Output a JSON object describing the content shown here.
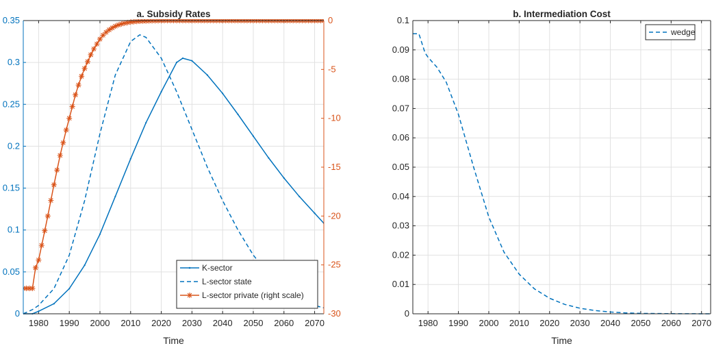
{
  "colors": {
    "blue": "#0072BD",
    "orange": "#D95319",
    "grid": "#e1e1e1",
    "axis": "#262626"
  },
  "chart_data": [
    {
      "type": "line",
      "title": "a. Subsidy Rates",
      "xlabel": "Time",
      "ylabel": "",
      "y2label": "",
      "xlim": [
        1975,
        2073
      ],
      "ylim": [
        0,
        0.35
      ],
      "y2lim": [
        -30,
        0
      ],
      "grid": true,
      "legend_position": "bottom-right",
      "xticks": [
        1980,
        1990,
        2000,
        2010,
        2020,
        2030,
        2040,
        2050,
        2060,
        2070
      ],
      "xtick_labels": [
        "1980",
        "1990",
        "2000",
        "2010",
        "2020",
        "2030",
        "2040",
        "2050",
        "2060",
        "2070"
      ],
      "yticks": [
        0,
        0.05,
        0.1,
        0.15,
        0.2,
        0.25,
        0.3,
        0.35
      ],
      "ytick_labels": [
        "0",
        "0.05",
        "0.1",
        "0.15",
        "0.2",
        "0.25",
        "0.3",
        "0.35"
      ],
      "y2ticks": [
        0,
        -5,
        -10,
        -15,
        -20,
        -25,
        -30
      ],
      "y2tick_labels": [
        "0",
        "-5",
        "-10",
        "-15",
        "-20",
        "-25",
        "-30"
      ],
      "series": [
        {
          "name": "K-sector",
          "axis": "left",
          "style": "solid",
          "marker": "dot",
          "color": "#0072BD",
          "x": [
            1975,
            1978,
            1980,
            1985,
            1990,
            1995,
            2000,
            2005,
            2010,
            2015,
            2020,
            2025,
            2027,
            2030,
            2035,
            2040,
            2045,
            2050,
            2055,
            2060,
            2065,
            2070,
            2073
          ],
          "y": [
            0,
            0,
            0.003,
            0.012,
            0.03,
            0.058,
            0.095,
            0.14,
            0.185,
            0.228,
            0.265,
            0.3,
            0.305,
            0.302,
            0.285,
            0.263,
            0.238,
            0.212,
            0.186,
            0.162,
            0.14,
            0.12,
            0.108
          ]
        },
        {
          "name": "L-sector state",
          "axis": "left",
          "style": "dashed",
          "marker": "none",
          "color": "#0072BD",
          "x": [
            1975,
            1978,
            1980,
            1985,
            1990,
            1995,
            2000,
            2005,
            2010,
            2013,
            2015,
            2020,
            2025,
            2030,
            2035,
            2040,
            2045,
            2050,
            2055,
            2060,
            2065,
            2070,
            2073
          ],
          "y": [
            0,
            0.005,
            0.01,
            0.03,
            0.07,
            0.135,
            0.215,
            0.285,
            0.325,
            0.333,
            0.33,
            0.305,
            0.265,
            0.22,
            0.175,
            0.135,
            0.1,
            0.07,
            0.047,
            0.03,
            0.018,
            0.01,
            0.007
          ]
        },
        {
          "name": "L-sector private (right scale)",
          "axis": "right",
          "style": "solid",
          "marker": "star",
          "color": "#D95319",
          "x": [
            1975,
            1976,
            1977,
            1978,
            1979,
            1980,
            1981,
            1982,
            1983,
            1984,
            1985,
            1986,
            1987,
            1988,
            1989,
            1990,
            1991,
            1992,
            1993,
            1994,
            1995,
            1996,
            1997,
            1998,
            1999,
            2000,
            2001,
            2002,
            2003,
            2004,
            2005,
            2006,
            2007,
            2008,
            2009,
            2010,
            2011,
            2012,
            2013,
            2014,
            2015,
            2016,
            2017,
            2018,
            2019,
            2020,
            2021,
            2022,
            2023,
            2024,
            2025,
            2026,
            2027,
            2028,
            2029,
            2030,
            2031,
            2032,
            2033,
            2034,
            2035,
            2036,
            2037,
            2038,
            2039,
            2040,
            2041,
            2042,
            2043,
            2044,
            2045,
            2046,
            2047,
            2048,
            2049,
            2050,
            2051,
            2052,
            2053,
            2054,
            2055,
            2056,
            2057,
            2058,
            2059,
            2060,
            2061,
            2062,
            2063,
            2064,
            2065,
            2066,
            2067,
            2068,
            2069,
            2070,
            2071,
            2072,
            2073
          ],
          "y": [
            -27.4,
            -27.4,
            -27.4,
            -27.4,
            -25.3,
            -24.5,
            -23.0,
            -21.5,
            -20.0,
            -18.4,
            -16.8,
            -15.3,
            -13.8,
            -12.5,
            -11.2,
            -10.0,
            -8.8,
            -7.6,
            -6.6,
            -5.7,
            -4.9,
            -4.2,
            -3.5,
            -2.9,
            -2.4,
            -1.9,
            -1.5,
            -1.2,
            -0.95,
            -0.75,
            -0.58,
            -0.45,
            -0.35,
            -0.27,
            -0.21,
            -0.16,
            -0.12,
            -0.09,
            -0.07,
            -0.05,
            -0.04,
            -0.03,
            -0.02,
            -0.02,
            -0.01,
            -0.01,
            0,
            0,
            0,
            0,
            0,
            0,
            0,
            0,
            0,
            0,
            0,
            0,
            0,
            0,
            0,
            0,
            0,
            0,
            0,
            0,
            0,
            0,
            0,
            0,
            0,
            0,
            0,
            0,
            0,
            0,
            0,
            0,
            0,
            0,
            0,
            0,
            0,
            0,
            0,
            0,
            0,
            0,
            0,
            0,
            0,
            0,
            0,
            0,
            0,
            0,
            0,
            0,
            0
          ]
        }
      ]
    },
    {
      "type": "line",
      "title": "b. Intermediation Cost",
      "xlabel": "Time",
      "ylabel": "",
      "xlim": [
        1975,
        2073
      ],
      "ylim": [
        0,
        0.1
      ],
      "grid": true,
      "legend_position": "top-right",
      "xticks": [
        1980,
        1990,
        2000,
        2010,
        2020,
        2030,
        2040,
        2050,
        2060,
        2070
      ],
      "xtick_labels": [
        "1980",
        "1990",
        "2000",
        "2010",
        "2020",
        "2030",
        "2040",
        "2050",
        "2060",
        "2070"
      ],
      "yticks": [
        0,
        0.01,
        0.02,
        0.03,
        0.04,
        0.05,
        0.06,
        0.07,
        0.08,
        0.09,
        0.1
      ],
      "ytick_labels": [
        "0",
        "0.01",
        "0.02",
        "0.03",
        "0.04",
        "0.05",
        "0.06",
        "0.07",
        "0.08",
        "0.09",
        "0.1"
      ],
      "series": [
        {
          "name": "wedge",
          "axis": "left",
          "style": "dashed",
          "marker": "none",
          "color": "#0072BD",
          "x": [
            1975,
            1977,
            1979,
            1980,
            1983,
            1986,
            1990,
            1995,
            2000,
            2005,
            2010,
            2015,
            2020,
            2025,
            2030,
            2035,
            2040,
            2045,
            2050,
            2060,
            2073
          ],
          "y": [
            0.0955,
            0.0955,
            0.089,
            0.0875,
            0.084,
            0.079,
            0.068,
            0.05,
            0.033,
            0.021,
            0.0135,
            0.0085,
            0.0053,
            0.0032,
            0.0019,
            0.0011,
            0.0006,
            0.0003,
            0.00015,
            5e-05,
            0
          ]
        }
      ]
    }
  ]
}
